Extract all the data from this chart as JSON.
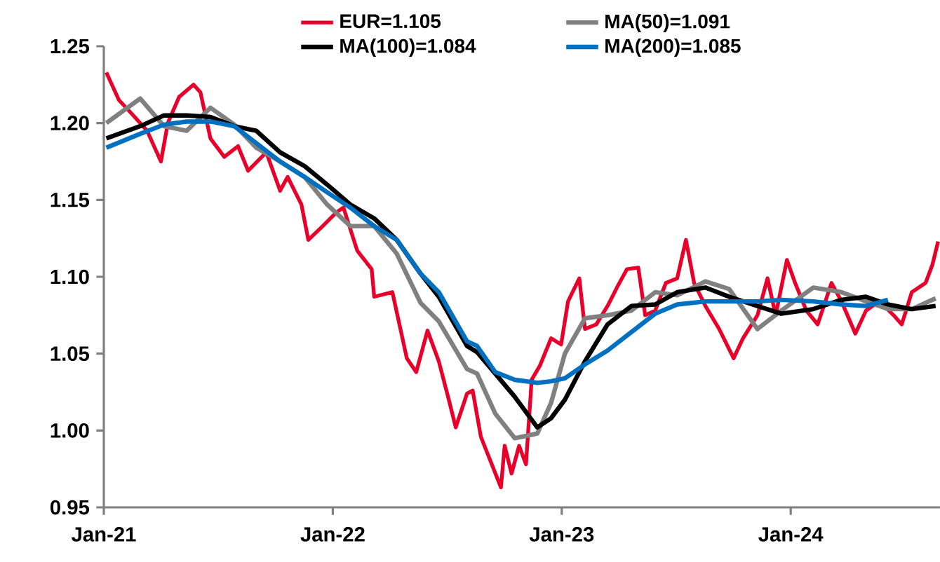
{
  "chart_data": {
    "type": "line",
    "x": [
      "2021-01-05",
      "2021-02-28",
      "2021-04-07",
      "2021-05-13",
      "2021-06-20",
      "2021-07-28",
      "2021-09-01",
      "2021-10-09",
      "2021-11-17",
      "2021-12-23",
      "2022-01-29",
      "2022-03-08",
      "2022-04-13",
      "2022-05-21",
      "2022-06-19",
      "2022-08-03",
      "2022-08-19",
      "2022-09-17",
      "2022-10-18",
      "2022-11-23",
      "2022-12-15",
      "2023-01-06",
      "2023-02-07",
      "2023-03-15",
      "2023-04-22",
      "2023-05-30",
      "2023-07-04",
      "2023-08-18",
      "2023-09-25",
      "2023-11-09",
      "2023-12-17",
      "2024-02-06",
      "2024-03-22",
      "2024-04-30",
      "2024-06-04",
      "2024-07-12",
      "2024-08-19"
    ],
    "series": [
      {
        "name": "EUR=1.105",
        "color": "#e8002a",
        "x": [
          "2021-01-05",
          "2021-01-25",
          "2021-02-17",
          "2021-03-11",
          "2021-04-02",
          "2021-04-13",
          "2021-05-01",
          "2021-05-24",
          "2021-06-04",
          "2021-06-20",
          "2021-07-12",
          "2021-08-03",
          "2021-08-19",
          "2021-09-17",
          "2021-10-09",
          "2021-10-21",
          "2021-11-12",
          "2021-11-23",
          "2021-12-16",
          "2022-01-07",
          "2022-01-18",
          "2022-02-09",
          "2022-03-04",
          "2022-03-08",
          "2022-04-06",
          "2022-04-29",
          "2022-05-14",
          "2022-06-01",
          "2022-06-19",
          "2022-07-05",
          "2022-07-16",
          "2022-08-03",
          "2022-08-12",
          "2022-08-25",
          "2022-09-26",
          "2022-10-02",
          "2022-10-13",
          "2022-10-25",
          "2022-11-05",
          "2022-11-14",
          "2022-11-27",
          "2022-12-15",
          "2022-12-31",
          "2023-01-11",
          "2023-01-29",
          "2023-02-07",
          "2023-02-25",
          "2023-03-15",
          "2023-03-30",
          "2023-04-15",
          "2023-05-03",
          "2023-05-14",
          "2023-05-30",
          "2023-06-16",
          "2023-07-04",
          "2023-07-18",
          "2023-07-31",
          "2023-08-18",
          "2023-09-09",
          "2023-10-02",
          "2023-10-17",
          "2023-11-09",
          "2023-11-25",
          "2023-12-08",
          "2023-12-26",
          "2024-01-08",
          "2024-01-26",
          "2024-02-13",
          "2024-03-06",
          "2024-03-22",
          "2024-04-13",
          "2024-04-30",
          "2024-05-21",
          "2024-06-13",
          "2024-06-26",
          "2024-07-12",
          "2024-08-03",
          "2024-08-14",
          "2024-08-23"
        ],
        "values": [
          1.233,
          1.215,
          1.205,
          1.195,
          1.175,
          1.2,
          1.217,
          1.225,
          1.22,
          1.19,
          1.178,
          1.185,
          1.169,
          1.181,
          1.156,
          1.165,
          1.147,
          1.124,
          1.133,
          1.142,
          1.145,
          1.117,
          1.105,
          1.087,
          1.09,
          1.047,
          1.038,
          1.065,
          1.045,
          1.02,
          1.002,
          1.024,
          1.026,
          0.996,
          0.963,
          0.99,
          0.972,
          0.99,
          0.978,
          1.033,
          1.042,
          1.06,
          1.056,
          1.084,
          1.099,
          1.066,
          1.069,
          1.081,
          1.093,
          1.105,
          1.106,
          1.075,
          1.078,
          1.096,
          1.099,
          1.124,
          1.096,
          1.081,
          1.066,
          1.047,
          1.06,
          1.075,
          1.099,
          1.075,
          1.111,
          1.096,
          1.078,
          1.069,
          1.096,
          1.084,
          1.063,
          1.078,
          1.084,
          1.075,
          1.069,
          1.09,
          1.096,
          1.108,
          1.123
        ]
      },
      {
        "name": "MA(50)=1.091",
        "color": "#808080",
        "values": [
          1.2,
          1.216,
          1.198,
          1.195,
          1.21,
          1.199,
          1.184,
          1.175,
          1.165,
          1.147,
          1.133,
          1.133,
          1.115,
          1.083,
          1.071,
          1.04,
          1.037,
          1.011,
          0.995,
          0.998,
          1.018,
          1.05,
          1.073,
          1.075,
          1.078,
          1.09,
          1.088,
          1.097,
          1.092,
          1.066,
          1.078,
          1.093,
          1.09,
          1.084,
          1.079,
          1.079,
          1.086
        ]
      },
      {
        "name": "MA(100)=1.084",
        "color": "#000000",
        "values": [
          1.19,
          1.198,
          1.205,
          1.205,
          1.204,
          1.198,
          1.195,
          1.181,
          1.172,
          1.16,
          1.147,
          1.138,
          1.124,
          1.102,
          1.087,
          1.055,
          1.051,
          1.037,
          1.022,
          1.002,
          1.008,
          1.02,
          1.045,
          1.069,
          1.081,
          1.082,
          1.09,
          1.093,
          1.087,
          1.081,
          1.076,
          1.079,
          1.085,
          1.087,
          1.082,
          1.079,
          1.081
        ]
      },
      {
        "name": "MA(200)=1.085",
        "color": "#0070c0",
        "values": [
          1.184,
          1.193,
          1.199,
          1.201,
          1.201,
          1.198,
          1.187,
          1.175,
          1.165,
          1.155,
          1.145,
          1.133,
          1.124,
          1.102,
          1.09,
          1.058,
          1.055,
          1.038,
          1.033,
          1.031,
          1.032,
          1.034,
          1.043,
          1.052,
          1.064,
          1.076,
          1.082,
          1.084,
          1.084,
          1.084,
          1.085,
          1.084,
          1.082,
          1.081,
          1.085,
          null,
          null
        ]
      }
    ],
    "xlim": [
      "2021-01-01",
      "2024-08-26"
    ],
    "xticks": [
      {
        "value": "2021-01-01",
        "label": "Jan-21"
      },
      {
        "value": "2022-01-01",
        "label": "Jan-22"
      },
      {
        "value": "2023-01-01",
        "label": "Jan-23"
      },
      {
        "value": "2024-01-01",
        "label": "Jan-24"
      }
    ],
    "ylim": [
      0.95,
      1.25
    ],
    "yticks": [
      {
        "value": 0.95,
        "label": "0.95"
      },
      {
        "value": 1.0,
        "label": "1.00"
      },
      {
        "value": 1.05,
        "label": "1.05"
      },
      {
        "value": 1.1,
        "label": "1.10"
      },
      {
        "value": 1.15,
        "label": "1.15"
      },
      {
        "value": 1.2,
        "label": "1.20"
      },
      {
        "value": 1.25,
        "label": "1.25"
      }
    ],
    "grid": false,
    "legend": "top"
  }
}
